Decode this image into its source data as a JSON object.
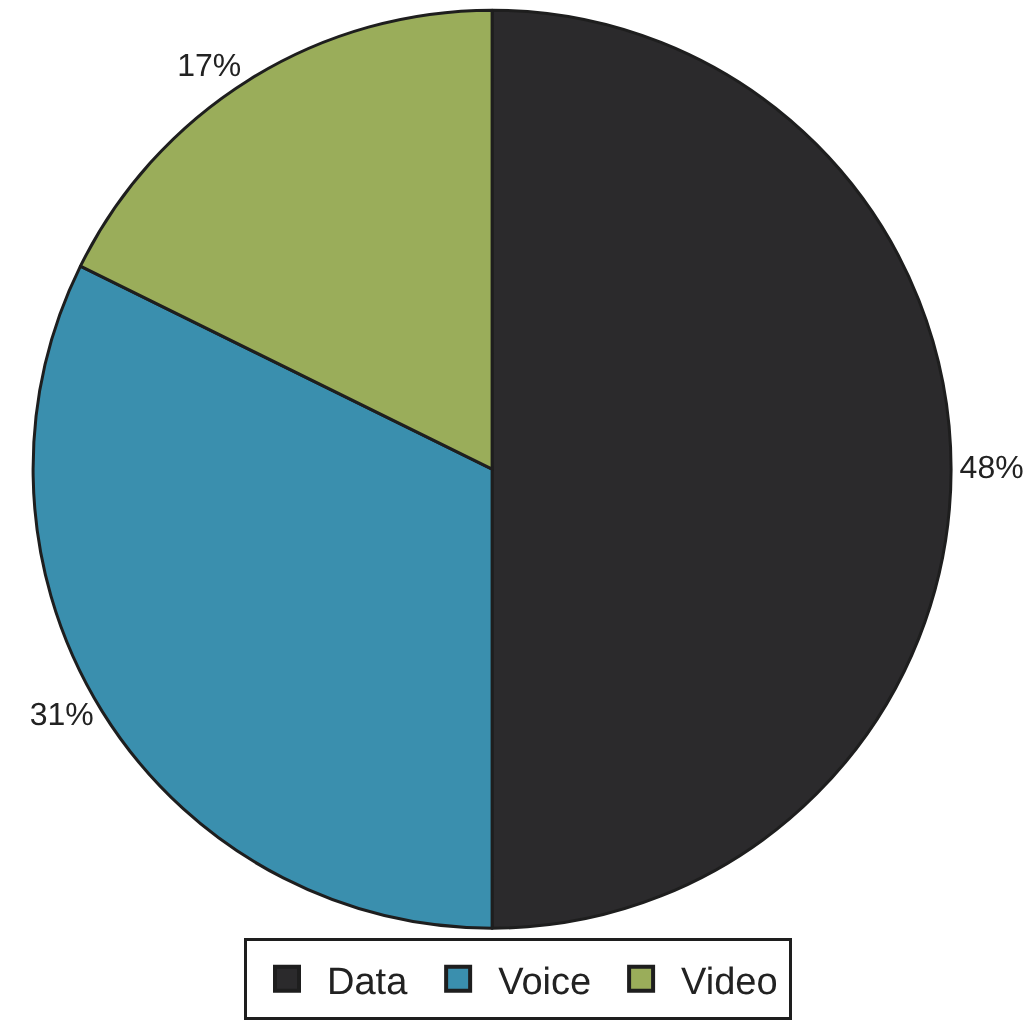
{
  "chart_data": {
    "type": "pie",
    "categories": [
      "Data",
      "Voice",
      "Video"
    ],
    "values": [
      48,
      31,
      17
    ],
    "value_labels": [
      "48%",
      "31%",
      "17%"
    ],
    "colors": [
      "#2b2a2c",
      "#3a8fae",
      "#9aad5a"
    ],
    "legend": "bottom"
  }
}
